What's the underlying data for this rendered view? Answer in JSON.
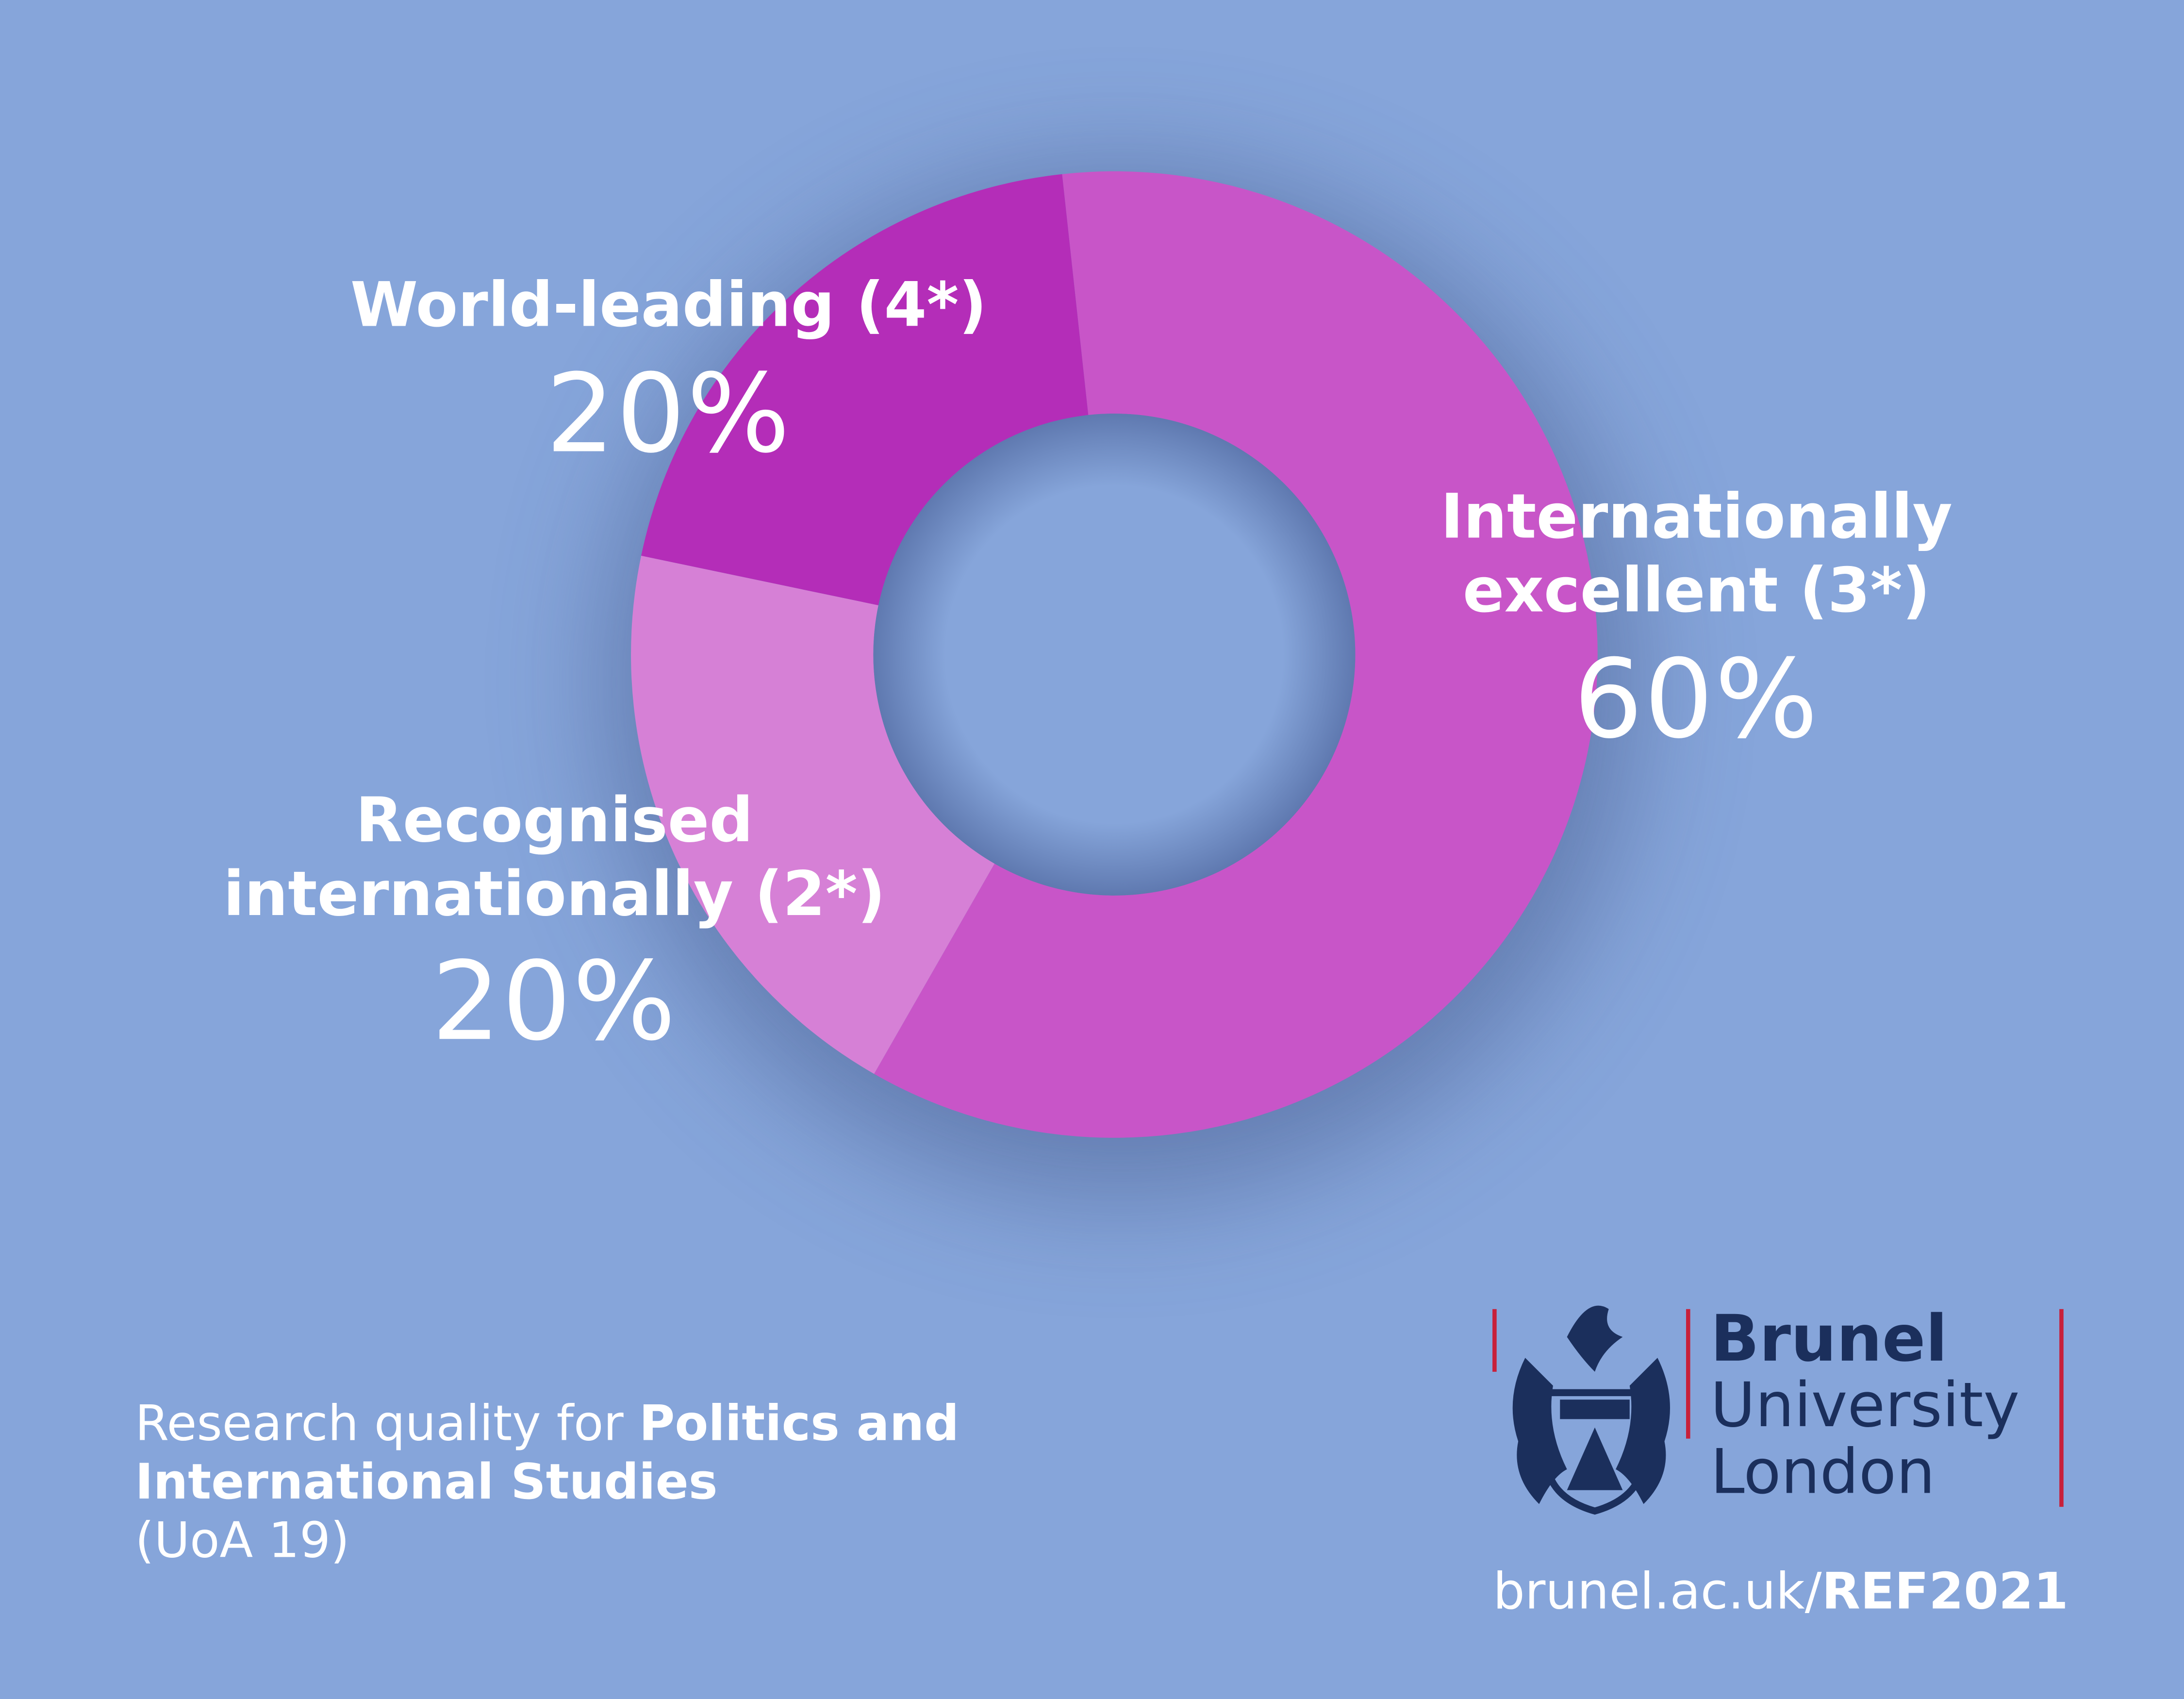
{
  "chart_data": {
    "type": "donut",
    "categories": [
      "Internationally\nexcellent (3*)",
      "Recognised\ninternationally (2*)",
      "World-leading (4*)"
    ],
    "values": [
      60,
      20,
      20
    ],
    "value_labels": [
      "60%",
      "20%",
      "20%"
    ],
    "colors": [
      "#c855c8",
      "#d680d6",
      "#b42db8"
    ]
  },
  "footer": {
    "caption_prefix": "Research quality for",
    "caption_bold": "Politics and International Studies",
    "caption_suffix": "(UoA 19)",
    "logo_line1": "Brunel",
    "logo_line2": "University",
    "logo_line3": "London",
    "url_prefix": "brunel.ac.uk/",
    "url_bold": "REF2021"
  }
}
